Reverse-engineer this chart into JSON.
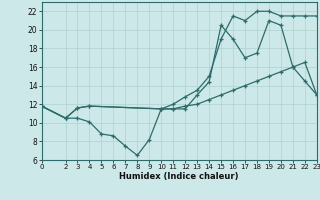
{
  "xlabel": "Humidex (Indice chaleur)",
  "background_color": "#cce8e8",
  "grid_color": "#b0d0d0",
  "line_color": "#2e6b6b",
  "ylim": [
    6,
    23
  ],
  "xlim": [
    0,
    23
  ],
  "yticks": [
    6,
    8,
    10,
    12,
    14,
    16,
    18,
    20,
    22
  ],
  "xticks": [
    0,
    2,
    3,
    4,
    5,
    6,
    7,
    8,
    9,
    10,
    11,
    12,
    13,
    14,
    15,
    16,
    17,
    18,
    19,
    20,
    21,
    22,
    23
  ],
  "line1_x": [
    0,
    2,
    3,
    4,
    5,
    6,
    7,
    8,
    9,
    10,
    11,
    12,
    13,
    14,
    15,
    16,
    17,
    18,
    19,
    20,
    21,
    22,
    23
  ],
  "line1_y": [
    11.8,
    10.5,
    10.5,
    10.1,
    8.8,
    8.6,
    7.5,
    6.5,
    8.2,
    11.5,
    11.5,
    11.5,
    13.0,
    14.4,
    20.5,
    19.0,
    17.0,
    17.5,
    21.0,
    20.5,
    16.0,
    14.5,
    13.0
  ],
  "line2_x": [
    0,
    2,
    3,
    4,
    10,
    11,
    12,
    13,
    14,
    15,
    16,
    17,
    18,
    19,
    20,
    21,
    22,
    23
  ],
  "line2_y": [
    11.8,
    10.5,
    11.6,
    11.8,
    11.5,
    11.5,
    11.8,
    12.0,
    12.5,
    13.0,
    13.5,
    14.0,
    14.5,
    15.0,
    15.5,
    16.0,
    16.5,
    13.0
  ],
  "line3_x": [
    0,
    2,
    3,
    4,
    10,
    11,
    12,
    13,
    14,
    15,
    16,
    17,
    18,
    19,
    20,
    21,
    22,
    23
  ],
  "line3_y": [
    11.8,
    10.5,
    11.6,
    11.8,
    11.5,
    12.0,
    12.8,
    13.5,
    15.0,
    19.0,
    21.5,
    21.0,
    22.0,
    22.0,
    21.5,
    21.5,
    21.5,
    21.5
  ]
}
